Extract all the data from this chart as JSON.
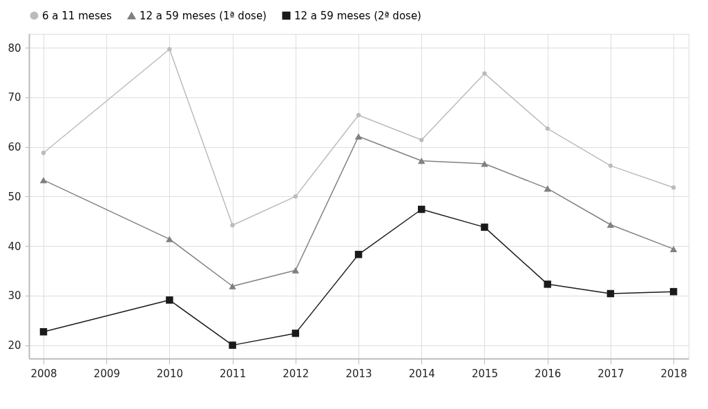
{
  "chart_data": {
    "type": "line",
    "x": [
      2008,
      2010,
      2011,
      2012,
      2013,
      2014,
      2015,
      2016,
      2017,
      2018
    ],
    "series": [
      {
        "name": "6 a 11 meses",
        "color": "#bbbbbb",
        "marker": "circle",
        "values": [
          58.8,
          79.7,
          44.2,
          50.0,
          66.4,
          61.4,
          74.8,
          63.7,
          56.2,
          51.8
        ]
      },
      {
        "name": "12 a 59 meses (1ª dose)",
        "color": "#808080",
        "marker": "triangle",
        "values": [
          53.3,
          41.4,
          31.9,
          35.1,
          62.1,
          57.2,
          56.6,
          51.6,
          44.3,
          39.4
        ]
      },
      {
        "name": "12 a 59 meses (2ª dose)",
        "color": "#1a1a1a",
        "marker": "square",
        "values": [
          22.7,
          29.1,
          20.0,
          22.4,
          38.3,
          47.4,
          43.8,
          32.3,
          30.4,
          30.8
        ]
      }
    ],
    "xlim": [
      2007.77,
      2018.24
    ],
    "xticks": [
      2008,
      2009,
      2010,
      2011,
      2012,
      2013,
      2014,
      2015,
      2016,
      2017,
      2018
    ],
    "ylim": [
      17.3,
      82.8
    ],
    "yticks": [
      20,
      30,
      40,
      50,
      60,
      70,
      80
    ],
    "grid": true,
    "legend": "top",
    "line_style": "solid"
  }
}
